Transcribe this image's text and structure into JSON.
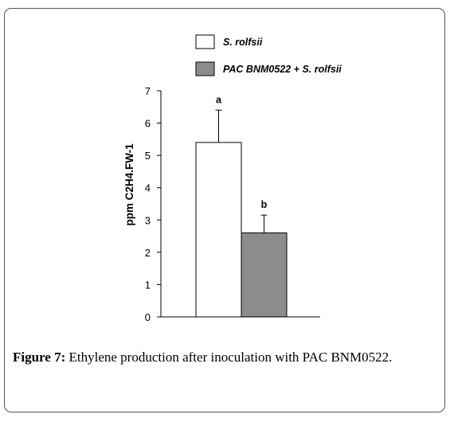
{
  "chart_data": {
    "type": "bar",
    "categories": [
      "S. rolfsii",
      "PAC BNM0522 + S. rolfsii"
    ],
    "series": [
      {
        "name": "S. rolfsii",
        "value": 5.4,
        "error": 1.0,
        "significance": "a",
        "color": "#ffffff"
      },
      {
        "name": "PAC BNM0522 + S. rolfsii",
        "value": 2.6,
        "error": 0.55,
        "significance": "b",
        "color": "#8c8c8c"
      }
    ],
    "values": [
      5.4,
      2.6
    ],
    "ylabel": "ppm C2H4.FW-1",
    "ylim": [
      0,
      7
    ],
    "yticks": [
      "0",
      "1",
      "2",
      "3",
      "4",
      "5",
      "6",
      "7"
    ],
    "legend_position": "top",
    "grid": false
  },
  "caption": {
    "label": "Figure 7:",
    "text": "Ethylene production after inoculation with PAC BNM0522."
  }
}
